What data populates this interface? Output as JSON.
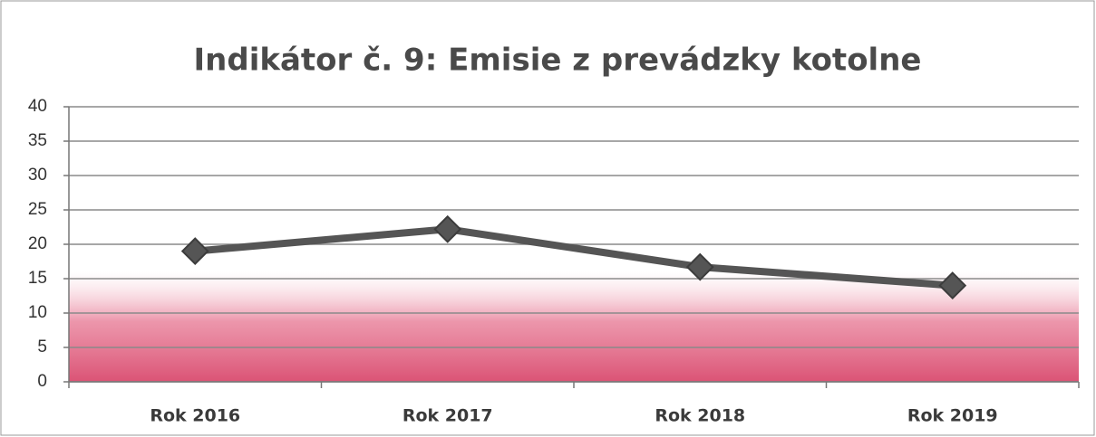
{
  "chart_data": {
    "type": "line",
    "title": "Indikátor č. 9: Emisie z prevádzky kotolne",
    "categories": [
      "Rok 2016",
      "Rok 2017",
      "Rok 2018",
      "Rok 2019"
    ],
    "values": [
      19,
      22.2,
      16.7,
      14
    ],
    "color": "#555555",
    "ylim": [
      0,
      40
    ],
    "yticks": [
      0,
      5,
      10,
      15,
      20,
      25,
      30,
      35,
      40
    ],
    "grid": true
  }
}
